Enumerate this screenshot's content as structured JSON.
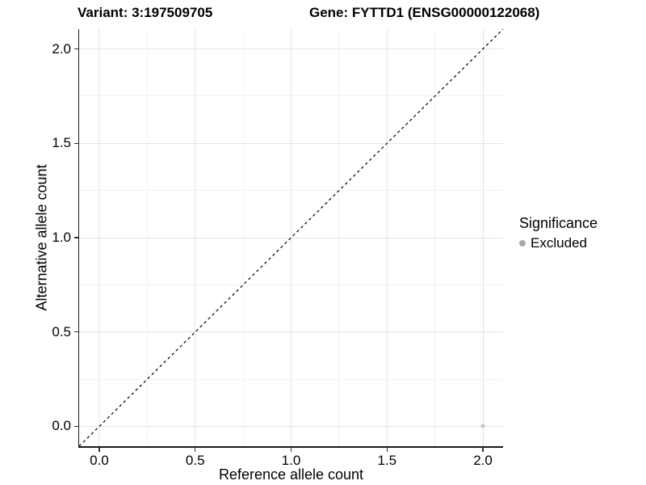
{
  "title": {
    "variant": "Variant: 3:197509705",
    "gene": "Gene: FYTTD1 (ENSG00000122068)"
  },
  "chart_data": {
    "type": "scatter",
    "xlabel": "Reference allele count",
    "ylabel": "Alternative allele count",
    "xlim": [
      -0.105,
      2.105
    ],
    "ylim": [
      -0.105,
      2.105
    ],
    "xticks": [
      0.0,
      0.5,
      1.0,
      1.5,
      2.0
    ],
    "yticks": [
      0.0,
      0.5,
      1.0,
      1.5,
      2.0
    ],
    "xtick_labels": [
      "0.0",
      "0.5",
      "1.0",
      "1.5",
      "2.0"
    ],
    "ytick_labels": [
      "0.0",
      "0.5",
      "1.0",
      "1.5",
      "2.0"
    ],
    "minor_xticks": [
      0.25,
      0.75,
      1.25,
      1.75
    ],
    "minor_yticks": [
      0.25,
      0.75,
      1.25,
      1.75
    ],
    "grid": true,
    "reference_line": {
      "kind": "identity y=x",
      "style": "dashed",
      "from": [
        -0.105,
        -0.105
      ],
      "to": [
        2.105,
        2.105
      ],
      "color": "#000000"
    },
    "series": [
      {
        "name": "Excluded",
        "marker": "circle",
        "color": "#c4c4c4",
        "points": [
          [
            2.0,
            0.0
          ]
        ]
      }
    ],
    "legend": {
      "title": "Significance",
      "position": "right",
      "items": [
        {
          "label": "Excluded",
          "color": "#a8a8a8",
          "marker": "circle"
        }
      ]
    }
  },
  "colors": {
    "background": "#ffffff",
    "grid_major": "#e4e4e4",
    "grid_minor": "#f1f1f1",
    "axis_line": "#1a1a1a",
    "tick_mark": "#333333",
    "text": "#000000",
    "point": "#c4c4c4",
    "legend_dot": "#a8a8a8",
    "dashed_line": "#000000"
  }
}
